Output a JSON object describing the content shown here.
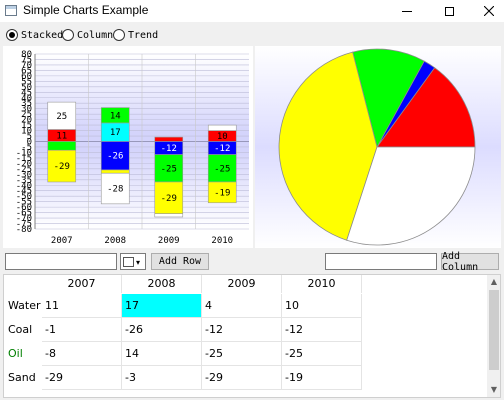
{
  "window": {
    "title": "Simple Charts Example",
    "minimize_icon": "minimize-icon",
    "maximize_icon": "maximize-icon",
    "close_icon": "close-icon"
  },
  "modes": [
    {
      "label": "Stacked",
      "selected": true
    },
    {
      "label": "Column",
      "selected": false
    },
    {
      "label": "Trend",
      "selected": false
    }
  ],
  "controls": {
    "row_input_value": "",
    "color_value": "#ffffff",
    "add_row_label": "Add Row",
    "column_input_value": "",
    "add_column_label": "Add Column"
  },
  "table": {
    "columns": [
      "2007",
      "2008",
      "2009",
      "2010"
    ],
    "rows": [
      {
        "name": "Water",
        "color": "#000000",
        "values": [
          "11",
          "17",
          "4",
          "10"
        ]
      },
      {
        "name": "Coal",
        "color": "#000000",
        "values": [
          "-1",
          "-26",
          "-12",
          "-12"
        ]
      },
      {
        "name": "Oil",
        "color": "#008000",
        "values": [
          "-8",
          "14",
          "-25",
          "-25"
        ]
      },
      {
        "name": "Sand",
        "color": "#000000",
        "values": [
          "-29",
          "-3",
          "-29",
          "-19"
        ]
      }
    ],
    "selected_cell": {
      "row": 0,
      "col": 1
    }
  },
  "chart_data": [
    {
      "type": "bar",
      "stacked": true,
      "categories": [
        "2007",
        "2008",
        "2009",
        "2010"
      ],
      "series": [
        {
          "name": "Water",
          "color": "#ff0000",
          "values": [
            11,
            17,
            4,
            10
          ]
        },
        {
          "name": "Coal",
          "color": "#ffffff",
          "values": [
            -1,
            -26,
            -12,
            -12
          ]
        },
        {
          "name": "Oil",
          "color": "#00ff00",
          "values": [
            -8,
            14,
            -25,
            -25
          ]
        },
        {
          "name": "Sand",
          "color": "#ffff00",
          "values": [
            -29,
            -3,
            -29,
            -19
          ]
        },
        {
          "name": "",
          "color": "#00ffff",
          "values": [
            0,
            17,
            0,
            0
          ]
        },
        {
          "name": "",
          "color": "#0000ff",
          "values": [
            0,
            -26,
            -12,
            -12
          ]
        },
        {
          "name": "",
          "color": "#ffffff",
          "values": [
            25,
            -28,
            -3,
            5
          ]
        }
      ],
      "display_labels": [
        [
          "25",
          "11",
          "",
          "-29"
        ],
        [
          "14",
          "17",
          "-26",
          "-28"
        ],
        [
          "-12",
          "-25",
          "-29"
        ],
        [
          "10",
          "-12",
          "-25",
          "-19"
        ]
      ],
      "ylim": [
        -80,
        80
      ],
      "y_ticks": [
        80,
        75,
        70,
        65,
        60,
        55,
        50,
        45,
        40,
        35,
        30,
        25,
        20,
        15,
        10,
        5,
        0,
        -5,
        -10,
        -15,
        -20,
        -25,
        -30,
        -35,
        -40,
        -45,
        -50,
        -55,
        -60,
        -65,
        -70,
        -75,
        -80
      ],
      "grid": true
    },
    {
      "type": "pie",
      "slices": [
        {
          "color": "#ff0000",
          "value": 15
        },
        {
          "color": "#0000ff",
          "value": 2
        },
        {
          "color": "#00ff00",
          "value": 12
        },
        {
          "color": "#ffff00",
          "value": 41
        },
        {
          "color": "#ffffff",
          "value": 30
        }
      ]
    }
  ]
}
